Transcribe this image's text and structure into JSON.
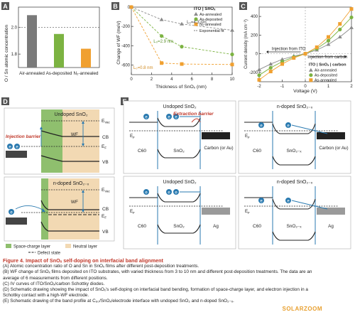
{
  "panels": {
    "A": {
      "letter": "A",
      "chart_data": {
        "type": "bar",
        "categories": [
          "Air-annealed",
          "As-deposited",
          "N₂-annealed"
        ],
        "values": [
          2.09,
          1.95,
          1.84
        ],
        "ylabel": "O / Sn atomic concentration",
        "ylim": [
          1.7,
          2.15
        ],
        "yticks": [
          "1.8",
          "2.0"
        ],
        "ref_line": 2.0,
        "colors": [
          "#7a7a7a",
          "#7cb342",
          "#f0a030"
        ]
      }
    },
    "B": {
      "letter": "B",
      "chart_data": {
        "type": "scatter",
        "title": "ITO | SnOₓ",
        "xlabel": "Thickness of SnOₓ (nm)",
        "ylabel": "Change of WF (meV)",
        "xlim": [
          0,
          10
        ],
        "ylim": [
          -700,
          0
        ],
        "xticks": [
          "0",
          "2",
          "4",
          "6",
          "8",
          "10"
        ],
        "yticks": [
          "0",
          "-200",
          "-400",
          "-600"
        ],
        "series": [
          {
            "name": "As-annealed",
            "color": "#8a8a8a",
            "marker": "triangle",
            "x": [
              0,
              3,
              5,
              10
            ],
            "y": [
              0,
              -130,
              -175,
              -240
            ]
          },
          {
            "name": "As-deposited",
            "color": "#7cb342",
            "marker": "circle",
            "x": [
              0,
              3,
              5,
              10
            ],
            "y": [
              0,
              -300,
              -410,
              -490
            ]
          },
          {
            "name": "N₂-annealed",
            "color": "#f0a030",
            "marker": "square",
            "x": [
              0,
              3,
              5,
              10
            ],
            "y": [
              0,
              -580,
              -590,
              -595
            ]
          }
        ],
        "fit_label": "Exponential fit",
        "annotations": [
          "L₀=4.3 nm",
          "L₀=2.9 nm",
          "L₀=0.8 nm"
        ]
      }
    },
    "C": {
      "letter": "C",
      "chart_data": {
        "type": "line",
        "xlabel": "Voltage (V)",
        "ylabel": "Current density (mA cm⁻²)",
        "xlim": [
          -2,
          2
        ],
        "ylim": [
          -300,
          500
        ],
        "xticks": [
          "-2",
          "-1",
          "0",
          "1",
          "2"
        ],
        "yticks": [
          "400",
          "200",
          "0",
          "-200"
        ],
        "legend_title": "ITO | SnOₓ | carbon",
        "series": [
          {
            "name": "Air-annealed",
            "color": "#8a8a8a",
            "marker": "triangle",
            "x": [
              -2,
              -1.5,
              -1,
              -0.5,
              0,
              0.5,
              1,
              1.5,
              2
            ],
            "y": [
              -170,
              -110,
              -60,
              -25,
              0,
              40,
              100,
              180,
              280
            ]
          },
          {
            "name": "As-deposited",
            "color": "#7cb342",
            "marker": "circle",
            "x": [
              -2,
              -1.5,
              -1,
              -0.5,
              0,
              0.5,
              1,
              1.5,
              2
            ],
            "y": [
              -230,
              -150,
              -85,
              -35,
              0,
              55,
              140,
              260,
              390
            ]
          },
          {
            "name": "As-annealed",
            "color": "#f0a030",
            "marker": "square",
            "x": [
              -2,
              -1.5,
              -1,
              -0.5,
              0,
              0.5,
              1,
              1.5,
              2
            ],
            "y": [
              -280,
              -190,
              -110,
              -45,
              0,
              70,
              180,
              320,
              480
            ]
          }
        ],
        "annotations": [
          "Injection from ITO",
          "Injection from carbon"
        ]
      }
    },
    "D": {
      "letter": "D",
      "top_title": "Undoped SnO₂",
      "bottom_title": "n-doped SnO₂₋ₓ",
      "evac": "E",
      "evac_sub": "Vac",
      "cb": "CB",
      "ef": "E",
      "ef_sub": "F",
      "vb": "VB",
      "wf": "WF",
      "injection_barrier": "Injection barrier",
      "legend_space": "Space-charge layer",
      "legend_neutral": "Neutral layer",
      "legend_defect": "Defect state",
      "electron": "e"
    },
    "E": {
      "letter": "E",
      "titles": [
        "Undoped SnO₂",
        "n-doped SnO₂₋ₓ",
        "Undoped SnO₂",
        "n-doped SnO₂₋ₓ"
      ],
      "extraction_barrier": "Extraction barrier",
      "ef": "E",
      "ef_sub": "F",
      "c60": "C60",
      "sno2": "SnO₂",
      "sno2x": "SnO₂₋ₓ",
      "carbon": "Carbon (or Au)",
      "ag": "Ag",
      "electron": "e"
    }
  },
  "caption": {
    "title": "Figure 4. Impact of SnOₓ self-doping on interfacial band alignment",
    "lines": [
      "(A) Atomic concentration ratio of O and Sn in SnOₓ films after different post-deposition treatments.",
      "(B) WF change of SnOₓ films deposited on ITO substrates, with varied thickness from 3 to 10 nm and different post-deposition treatments. The data are an",
      "average of 6 measurements from different positions.",
      "(C) IV curves of ITO/SnOₓ/carbon Schottky diodes.",
      "(D) Schematic drawing showing the impact of SnOₓ's self-doping on interfacial band bending, formation of space-charge layer, and electron injection in a",
      "Schottky contact with a high-WF electrode.",
      "(E) Schematic drawing of the band profile at C₆₀/SnOₓ/electrode interface with undoped SnO₂ and n-doped SnO₂₋ₓ."
    ]
  },
  "watermark": "SOLARZOOM"
}
